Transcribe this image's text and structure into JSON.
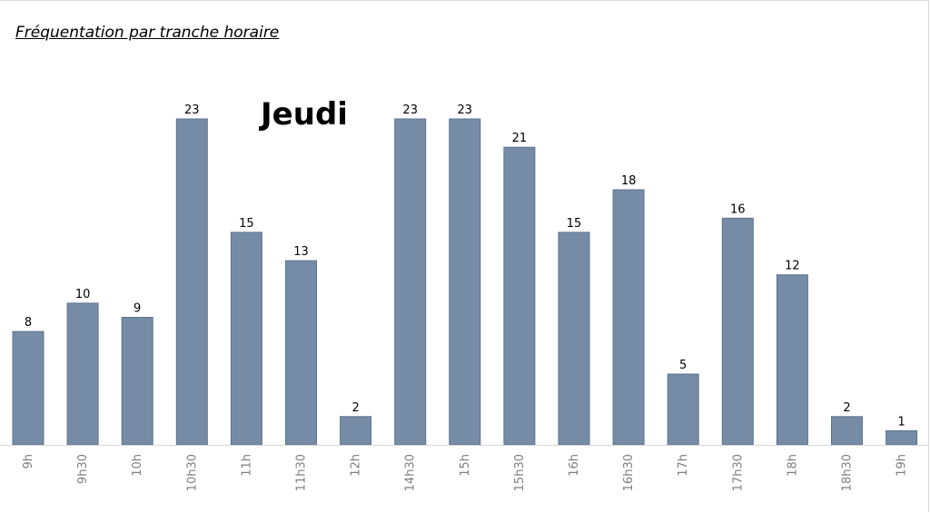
{
  "page": {
    "title": "Fréquentation par tranche horaire"
  },
  "chart_data": {
    "type": "bar",
    "title": "Jeudi",
    "categories": [
      "9h",
      "9h30",
      "10h",
      "10h30",
      "11h",
      "11h30",
      "12h",
      "14h30",
      "15h",
      "15h30",
      "16h",
      "16h30",
      "17h",
      "17h30",
      "18h",
      "18h30",
      "19h"
    ],
    "series": [
      {
        "values": [
          8,
          10,
          9,
          23,
          15,
          13,
          2,
          23,
          23,
          21,
          15,
          18,
          5,
          16,
          12,
          2,
          1
        ]
      }
    ],
    "data_labels": true,
    "xlabel": "",
    "ylabel": "",
    "ylim": [
      0,
      23
    ],
    "y_axis_visible": false,
    "grid": false,
    "colors": {
      "bar": "#768ca6",
      "bar_edge": "#5d7390",
      "axis": "#d9d9d9",
      "tick_text": "#7f7f7f"
    }
  }
}
